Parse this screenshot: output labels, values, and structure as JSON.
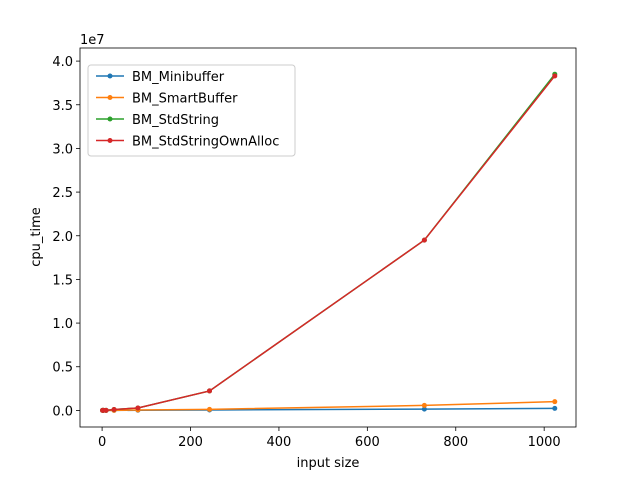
{
  "chart_data": {
    "type": "line",
    "xlabel": "input size",
    "ylabel": "cpu_time",
    "y_offset_label": "1e7",
    "x": [
      1,
      3,
      9,
      27,
      81,
      243,
      729,
      1024
    ],
    "series": [
      {
        "name": "BM_Minibuffer",
        "color": "#1f77b4",
        "values": [
          0.0,
          0.0,
          0.0,
          0.0,
          0.002,
          0.005,
          0.015,
          0.023
        ]
      },
      {
        "name": "BM_SmartBuffer",
        "color": "#ff7f0e",
        "values": [
          0.0,
          0.0,
          0.0,
          0.001,
          0.005,
          0.012,
          0.057,
          0.1
        ]
      },
      {
        "name": "BM_StdString",
        "color": "#2ca02c",
        "values": [
          0.0,
          0.0,
          0.001,
          0.01,
          0.028,
          0.223,
          1.95,
          3.85
        ]
      },
      {
        "name": "BM_StdStringOwnAlloc",
        "color": "#d62728",
        "values": [
          0.0,
          0.0,
          0.001,
          0.01,
          0.028,
          0.223,
          1.95,
          3.83
        ]
      }
    ],
    "xlim": [
      -50,
      1072
    ],
    "xticks": [
      0,
      200,
      400,
      600,
      800,
      1000
    ],
    "ylim": [
      -0.19,
      4.15
    ],
    "yticks": [
      {
        "value": 0,
        "label": "0.0"
      },
      {
        "value": 0.5,
        "label": "0.5"
      },
      {
        "value": 1,
        "label": "1.0"
      },
      {
        "value": 1.5,
        "label": "1.5"
      },
      {
        "value": 2,
        "label": "2.0"
      },
      {
        "value": 2.5,
        "label": "2.5"
      },
      {
        "value": 3,
        "label": "3.0"
      },
      {
        "value": 3.5,
        "label": "3.5"
      },
      {
        "value": 4,
        "label": "4.0"
      }
    ],
    "grid": false,
    "legend": "upper left"
  }
}
